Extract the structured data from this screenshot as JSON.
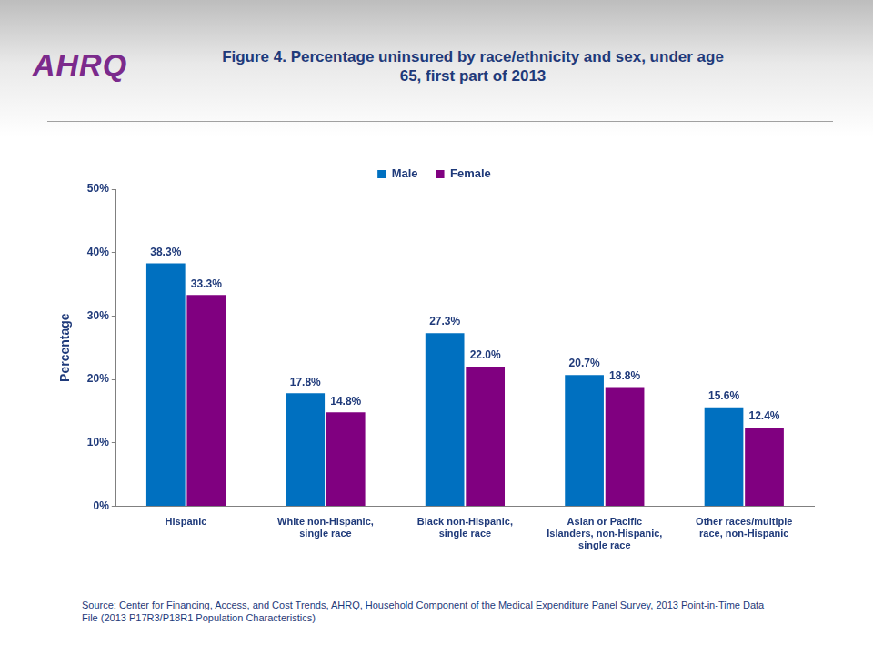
{
  "chart_data": {
    "type": "bar",
    "logo": "AHRQ",
    "title": "Figure 4. Percentage uninsured by race/ethnicity and sex, under age 65, first part of 2013",
    "y_label": "Percentage",
    "source": "Source: Center for Financing, Access, and Cost Trends, AHRQ, Household Component of the Medical Expenditure Panel Survey, 2013 Point-in-Time Data File (2013 P17R3/P18R1 Population Characteristics)",
    "categories": [
      "Hispanic",
      "White non-Hispanic, single race",
      "Black non-Hispanic, single race",
      "Asian or Pacific Islanders, non-Hispanic, single race",
      "Other races/multiple race, non-Hispanic"
    ],
    "series": [
      {
        "name": "Male",
        "color": "#0070c0",
        "values": [
          38.3,
          17.8,
          27.3,
          20.7,
          15.6
        ],
        "value_labels": [
          "38.3%",
          "17.8%",
          "27.3%",
          "20.7%",
          "15.6%"
        ]
      },
      {
        "name": "Female",
        "color": "#800080",
        "values": [
          33.3,
          14.8,
          22.0,
          18.8,
          12.4
        ],
        "value_labels": [
          "33.3%",
          "14.8%",
          "22.0%",
          "18.8%",
          "12.4%"
        ]
      }
    ],
    "ylim": [
      0,
      50
    ],
    "yticks": [
      {
        "value": 0,
        "label": "0%"
      },
      {
        "value": 10,
        "label": "10%"
      },
      {
        "value": 20,
        "label": "20%"
      },
      {
        "value": 30,
        "label": "30%"
      },
      {
        "value": 40,
        "label": "40%"
      },
      {
        "value": 50,
        "label": "50%"
      }
    ],
    "grid": false,
    "legend": "top",
    "data_labels": true
  }
}
